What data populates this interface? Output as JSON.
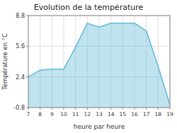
{
  "chart_data": {
    "type": "area",
    "title": "Evolution de la température",
    "x_label": "heure par heure",
    "y_label": "Température en °C",
    "x": [
      7,
      8,
      9,
      10,
      11,
      12,
      13,
      14,
      15,
      16,
      17,
      18,
      19
    ],
    "values": [
      2.4,
      3.1,
      3.2,
      3.2,
      5.5,
      8.0,
      7.6,
      8.0,
      8.0,
      8.0,
      7.2,
      3.5,
      -0.5
    ],
    "color": "#60b8d8",
    "xlim": [
      7,
      19
    ],
    "ylim": [
      -0.8,
      8.8
    ],
    "xticks": [
      7,
      8,
      9,
      10,
      11,
      12,
      13,
      14,
      15,
      16,
      17,
      18,
      19
    ],
    "yticks": [
      -0.8,
      2.4,
      5.6,
      8.8
    ],
    "grid": true
  }
}
